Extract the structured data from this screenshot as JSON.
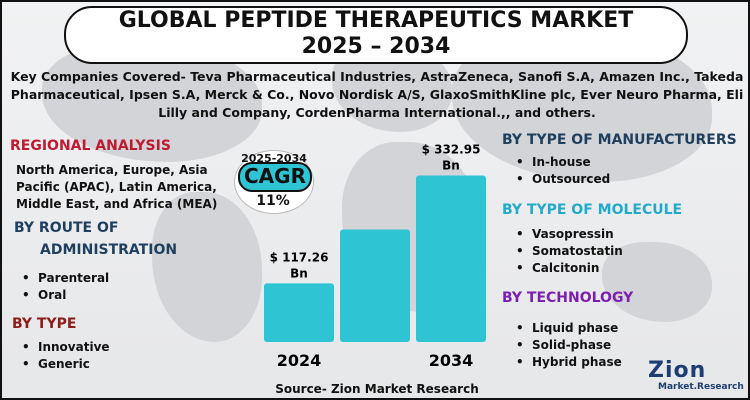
{
  "title": {
    "line1": "GLOBAL PEPTIDE THERAPEUTICS MARKET",
    "line2": "2025 – 2034"
  },
  "companies": "Key Companies Covered- Teva Pharmaceutical Industries, AstraZeneca, Sanofi S.A, Amazen Inc., Takeda Pharmaceutical, Ipsen S.A, Merck & Co., Novo Nordisk A/S, GlaxoSmithKline plc, Ever Neuro Pharma, Eli Lilly and Company, CordenPharma International.,, and others.",
  "regional": {
    "heading": "REGIONAL ANALYSIS",
    "text": "North America, Europe, Asia Pacific (APAC), Latin America, Middle East, and Africa (MEA)"
  },
  "route": {
    "heading_line1": "BY ROUTE OF",
    "heading_line2": "ADMINISTRATION",
    "items": [
      "Parenteral",
      "Oral"
    ]
  },
  "type": {
    "heading": "BY TYPE",
    "items": [
      "Innovative",
      "Generic"
    ]
  },
  "manufacturers": {
    "heading": "BY TYPE OF MANUFACTURERS",
    "items": [
      "In-house",
      "Outsourced"
    ]
  },
  "molecule": {
    "heading": "BY TYPE OF MOLECULE",
    "items": [
      "Vasopressin",
      "Somatostatin",
      "Calcitonin"
    ]
  },
  "technology": {
    "heading": "BY TECHNOLOGY",
    "items": [
      "Liquid phase",
      "Solid-phase",
      "Hybrid phase"
    ]
  },
  "cagr": {
    "years": "2025-2034",
    "label": "CAGR",
    "value": "11%"
  },
  "chart_data": {
    "type": "bar",
    "title": "",
    "categories": [
      "2024",
      "",
      "2034"
    ],
    "values": [
      117.26,
      225,
      332.95
    ],
    "value_labels": [
      "$ 117.26 Bn",
      "",
      "$ 332.95 Bn"
    ],
    "xlabel": "",
    "ylabel": "",
    "ylim": [
      0,
      380
    ],
    "bar_color": "#2ec4d3"
  },
  "source": "Source- Zion Market Research",
  "logo": {
    "main": "Zion",
    "sub": "Market.Research"
  },
  "colors": {
    "regional_heading": "#c0192f",
    "route_heading": "#1f3f5f",
    "type_heading": "#8c1d18",
    "manufacturers_heading": "#1f3f5f",
    "molecule_heading": "#22aacd",
    "technology_heading": "#7c1fb0",
    "accent": "#2ec4d3"
  }
}
